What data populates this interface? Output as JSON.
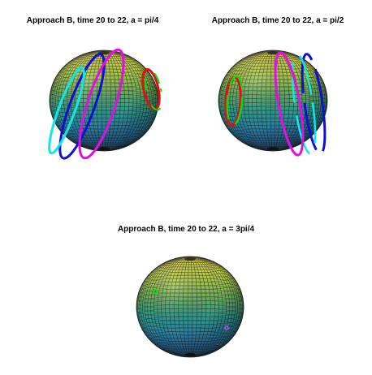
{
  "figure": {
    "panels": [
      {
        "id": "pi4",
        "title": "Approach B, time 20 to 22, a = pi/4",
        "curves": [
          {
            "color_name": "red",
            "color": "#e01010"
          },
          {
            "color_name": "green",
            "color": "#10d810"
          },
          {
            "color_name": "blue",
            "color": "#1010d0"
          },
          {
            "color_name": "cyan",
            "color": "#10e8e8"
          },
          {
            "color_name": "magenta",
            "color": "#e010e0"
          }
        ]
      },
      {
        "id": "pi2",
        "title": "Approach B, time 20 to 22, a = pi/2",
        "curves": [
          {
            "color_name": "red",
            "color": "#e01010"
          },
          {
            "color_name": "green",
            "color": "#10d810"
          },
          {
            "color_name": "blue",
            "color": "#1010d0"
          },
          {
            "color_name": "cyan",
            "color": "#10e8e8"
          },
          {
            "color_name": "magenta",
            "color": "#e010e0"
          }
        ]
      },
      {
        "id": "3pi4",
        "title": "Approach B, time 20 to 22, a = 3pi/4",
        "curves": [
          {
            "color_name": "green",
            "color": "#10d810"
          },
          {
            "color_name": "magenta",
            "color": "#b050e0"
          }
        ]
      }
    ],
    "sphere_colormap": [
      "#f2e460",
      "#b8cf48",
      "#6fb05a",
      "#2e9a8e",
      "#2a7fa8",
      "#2d5f9c"
    ]
  }
}
